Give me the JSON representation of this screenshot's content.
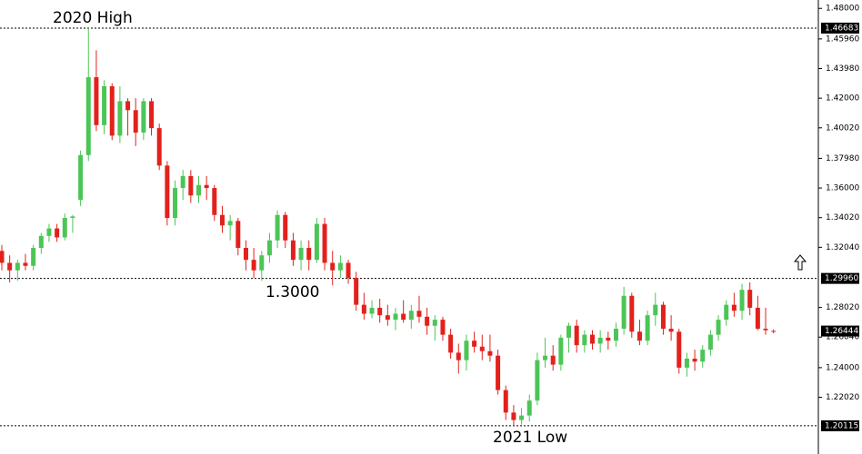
{
  "chart_data": {
    "type": "candlestick",
    "colors": {
      "up": "#4cc557",
      "down": "#e3211c"
    },
    "ylim": [
      1.1823,
      1.4856
    ],
    "yticks": [
      {
        "value": 1.48,
        "label": "1.48000"
      },
      {
        "value": 1.4596,
        "label": "1.45960"
      },
      {
        "value": 1.4398,
        "label": "1.43980"
      },
      {
        "value": 1.42,
        "label": "1.42000"
      },
      {
        "value": 1.4002,
        "label": "1.40020"
      },
      {
        "value": 1.3798,
        "label": "1.37980"
      },
      {
        "value": 1.36,
        "label": "1.36000"
      },
      {
        "value": 1.3402,
        "label": "1.34020"
      },
      {
        "value": 1.3204,
        "label": "1.32040"
      },
      {
        "value": 1.2802,
        "label": "1.28020"
      },
      {
        "value": 1.2604,
        "label": "1.26040"
      },
      {
        "value": 1.24,
        "label": "1.24000"
      },
      {
        "value": 1.2202,
        "label": "1.22020"
      }
    ],
    "levels": [
      {
        "value": 1.46683,
        "label": "1.46683"
      },
      {
        "value": 1.2996,
        "label": "1.29960"
      },
      {
        "value": 1.20115,
        "label": "1.20115"
      }
    ],
    "last_price": {
      "value": 1.26444,
      "label": "1.26444"
    },
    "annotations": [
      "2020 High",
      "1.3000",
      "2021 Low"
    ],
    "candles": [
      [
        1.318,
        1.322,
        1.305,
        1.31
      ],
      [
        1.31,
        1.315,
        1.297,
        1.305
      ],
      [
        1.305,
        1.312,
        1.298,
        1.31
      ],
      [
        1.31,
        1.316,
        1.305,
        1.308
      ],
      [
        1.308,
        1.322,
        1.305,
        1.32
      ],
      [
        1.32,
        1.33,
        1.316,
        1.328
      ],
      [
        1.328,
        1.336,
        1.324,
        1.333
      ],
      [
        1.333,
        1.336,
        1.324,
        1.327
      ],
      [
        1.327,
        1.343,
        1.325,
        1.34
      ],
      [
        1.34,
        1.342,
        1.33,
        1.341
      ],
      [
        1.352,
        1.385,
        1.348,
        1.382
      ],
      [
        1.382,
        1.46683,
        1.378,
        1.434
      ],
      [
        1.434,
        1.452,
        1.398,
        1.402
      ],
      [
        1.402,
        1.432,
        1.396,
        1.428
      ],
      [
        1.428,
        1.43,
        1.392,
        1.395
      ],
      [
        1.395,
        1.428,
        1.39,
        1.418
      ],
      [
        1.418,
        1.42,
        1.395,
        1.412
      ],
      [
        1.412,
        1.42,
        1.388,
        1.397
      ],
      [
        1.397,
        1.42,
        1.392,
        1.418
      ],
      [
        1.418,
        1.42,
        1.395,
        1.4
      ],
      [
        1.4,
        1.403,
        1.372,
        1.375
      ],
      [
        1.375,
        1.378,
        1.335,
        1.34
      ],
      [
        1.34,
        1.365,
        1.335,
        1.36
      ],
      [
        1.36,
        1.372,
        1.352,
        1.368
      ],
      [
        1.368,
        1.372,
        1.35,
        1.355
      ],
      [
        1.355,
        1.368,
        1.35,
        1.362
      ],
      [
        1.362,
        1.368,
        1.352,
        1.36
      ],
      [
        1.36,
        1.362,
        1.338,
        1.342
      ],
      [
        1.342,
        1.348,
        1.33,
        1.335
      ],
      [
        1.335,
        1.342,
        1.325,
        1.338
      ],
      [
        1.338,
        1.34,
        1.315,
        1.32
      ],
      [
        1.32,
        1.325,
        1.305,
        1.312
      ],
      [
        1.312,
        1.32,
        1.3,
        1.305
      ],
      [
        1.305,
        1.318,
        1.298,
        1.315
      ],
      [
        1.315,
        1.33,
        1.31,
        1.325
      ],
      [
        1.325,
        1.345,
        1.32,
        1.342
      ],
      [
        1.342,
        1.344,
        1.32,
        1.325
      ],
      [
        1.325,
        1.33,
        1.308,
        1.312
      ],
      [
        1.312,
        1.325,
        1.305,
        1.32
      ],
      [
        1.32,
        1.325,
        1.305,
        1.312
      ],
      [
        1.312,
        1.34,
        1.31,
        1.336
      ],
      [
        1.336,
        1.34,
        1.305,
        1.31
      ],
      [
        1.31,
        1.318,
        1.295,
        1.305
      ],
      [
        1.305,
        1.315,
        1.3,
        1.31
      ],
      [
        1.31,
        1.312,
        1.296,
        1.3
      ],
      [
        1.3,
        1.304,
        1.278,
        1.282
      ],
      [
        1.282,
        1.29,
        1.272,
        1.276
      ],
      [
        1.276,
        1.285,
        1.273,
        1.28
      ],
      [
        1.28,
        1.286,
        1.27,
        1.275
      ],
      [
        1.275,
        1.282,
        1.268,
        1.272
      ],
      [
        1.272,
        1.28,
        1.265,
        1.276
      ],
      [
        1.276,
        1.285,
        1.27,
        1.272
      ],
      [
        1.272,
        1.282,
        1.266,
        1.278
      ],
      [
        1.278,
        1.288,
        1.27,
        1.274
      ],
      [
        1.274,
        1.28,
        1.262,
        1.268
      ],
      [
        1.268,
        1.275,
        1.258,
        1.272
      ],
      [
        1.272,
        1.274,
        1.258,
        1.262
      ],
      [
        1.262,
        1.266,
        1.246,
        1.25
      ],
      [
        1.25,
        1.256,
        1.236,
        1.245
      ],
      [
        1.245,
        1.262,
        1.238,
        1.258
      ],
      [
        1.258,
        1.264,
        1.25,
        1.254
      ],
      [
        1.254,
        1.262,
        1.245,
        1.251
      ],
      [
        1.251,
        1.262,
        1.244,
        1.248
      ],
      [
        1.248,
        1.252,
        1.222,
        1.225
      ],
      [
        1.225,
        1.228,
        1.205,
        1.21
      ],
      [
        1.21,
        1.215,
        1.20115,
        1.205
      ],
      [
        1.205,
        1.213,
        1.202,
        1.208
      ],
      [
        1.208,
        1.222,
        1.204,
        1.218
      ],
      [
        1.218,
        1.25,
        1.215,
        1.245
      ],
      [
        1.245,
        1.26,
        1.24,
        1.248
      ],
      [
        1.248,
        1.255,
        1.238,
        1.242
      ],
      [
        1.242,
        1.262,
        1.238,
        1.26
      ],
      [
        1.26,
        1.27,
        1.25,
        1.268
      ],
      [
        1.268,
        1.272,
        1.25,
        1.255
      ],
      [
        1.255,
        1.265,
        1.25,
        1.262
      ],
      [
        1.262,
        1.265,
        1.252,
        1.256
      ],
      [
        1.256,
        1.265,
        1.25,
        1.26
      ],
      [
        1.26,
        1.264,
        1.252,
        1.258
      ],
      [
        1.258,
        1.27,
        1.254,
        1.266
      ],
      [
        1.266,
        1.294,
        1.262,
        1.288
      ],
      [
        1.288,
        1.29,
        1.26,
        1.264
      ],
      [
        1.264,
        1.272,
        1.255,
        1.258
      ],
      [
        1.258,
        1.278,
        1.255,
        1.275
      ],
      [
        1.275,
        1.29,
        1.268,
        1.282
      ],
      [
        1.282,
        1.284,
        1.262,
        1.266
      ],
      [
        1.266,
        1.275,
        1.258,
        1.264
      ],
      [
        1.264,
        1.266,
        1.236,
        1.24
      ],
      [
        1.24,
        1.25,
        1.234,
        1.246
      ],
      [
        1.246,
        1.252,
        1.238,
        1.244
      ],
      [
        1.244,
        1.255,
        1.24,
        1.252
      ],
      [
        1.252,
        1.265,
        1.248,
        1.262
      ],
      [
        1.262,
        1.275,
        1.258,
        1.272
      ],
      [
        1.272,
        1.285,
        1.268,
        1.282
      ],
      [
        1.282,
        1.29,
        1.274,
        1.278
      ],
      [
        1.278,
        1.296,
        1.272,
        1.292
      ],
      [
        1.292,
        1.297,
        1.275,
        1.28
      ],
      [
        1.28,
        1.288,
        1.265,
        1.266
      ],
      [
        1.266,
        1.28,
        1.262,
        1.265
      ],
      [
        1.2645,
        1.2655,
        1.263,
        1.26444
      ]
    ]
  }
}
